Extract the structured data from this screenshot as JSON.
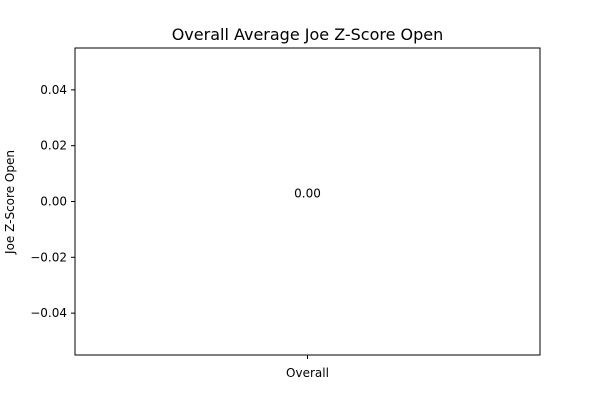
{
  "chart_data": {
    "type": "bar",
    "title": "Overall Average Joe Z-Score Open",
    "xlabel": "",
    "ylabel": "Joe Z-Score Open",
    "categories": [
      "Overall"
    ],
    "values": [
      0.0
    ],
    "data_labels": [
      "0.00"
    ],
    "ylim": [
      -0.055,
      0.055
    ],
    "yticks": [
      -0.04,
      -0.02,
      0.0,
      0.02,
      0.04
    ],
    "ytick_labels": [
      "−0.04",
      "−0.02",
      "0.00",
      "0.02",
      "0.04"
    ],
    "grid": false,
    "legend": "none",
    "bar_color": "#1f77b4"
  }
}
